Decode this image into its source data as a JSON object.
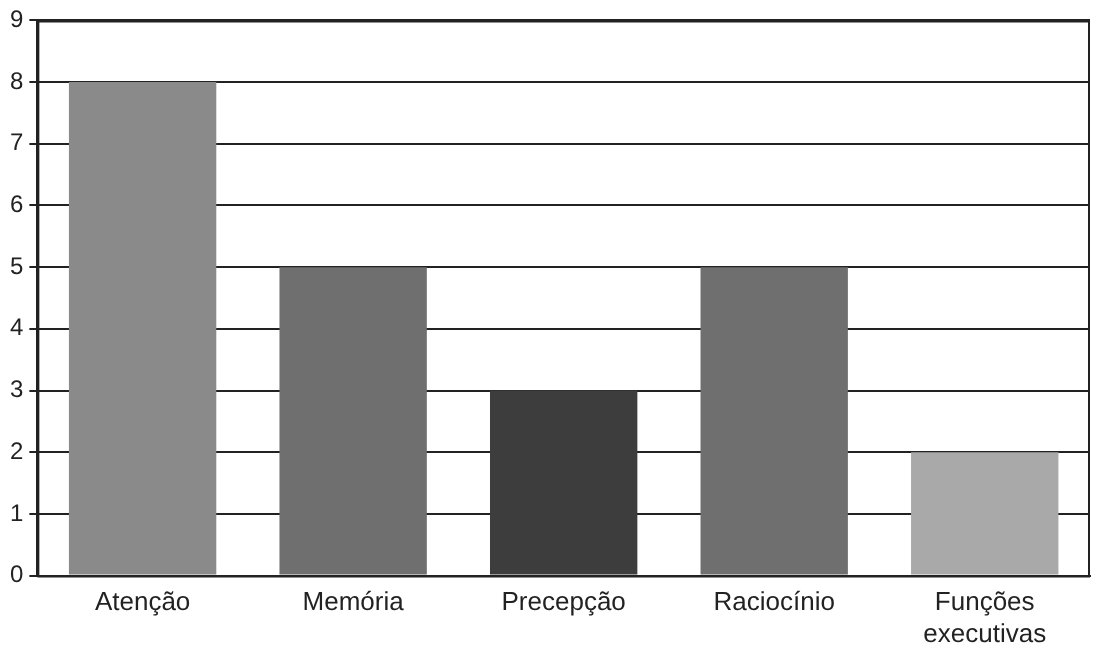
{
  "chart_data": {
    "type": "bar",
    "categories": [
      "Atenção",
      "Memória",
      "Precepção",
      "Raciocínio",
      "Funções executivas"
    ],
    "values": [
      8,
      5,
      3,
      5,
      2
    ],
    "colors": [
      "#8a8a8a",
      "#6f6f6f",
      "#3d3d3d",
      "#6f6f6f",
      "#a9a9a9"
    ],
    "ylim": [
      0,
      9
    ],
    "yticks": [
      0,
      1,
      2,
      3,
      4,
      5,
      6,
      7,
      8,
      9
    ],
    "grid": "y",
    "legend": false
  }
}
